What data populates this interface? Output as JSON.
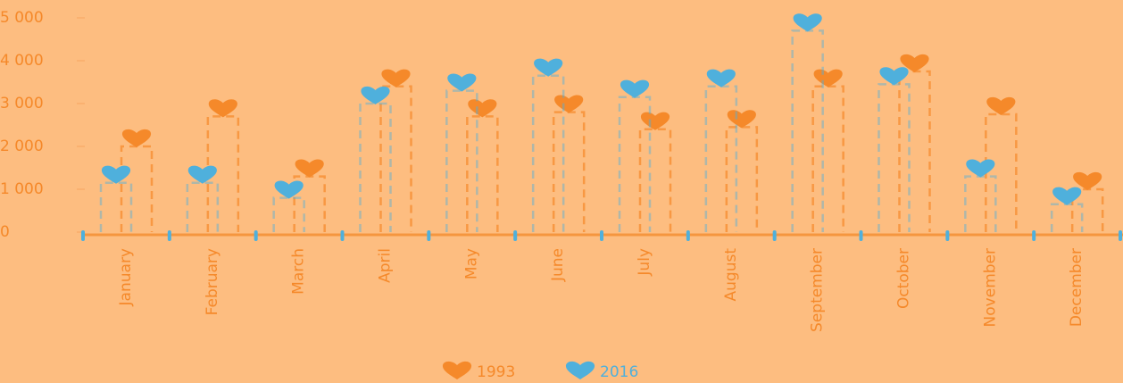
{
  "chart_data": {
    "type": "bar",
    "categories": [
      "January",
      "February",
      "March",
      "April",
      "May",
      "June",
      "July",
      "August",
      "September",
      "October",
      "November",
      "December"
    ],
    "series": [
      {
        "name": "1993",
        "color": "#f5892a",
        "values": [
          2000,
          2700,
          1300,
          3400,
          2700,
          2800,
          2400,
          2450,
          3400,
          3750,
          2750,
          1000
        ]
      },
      {
        "name": "2016",
        "color": "#4fb0dc",
        "values": [
          1150,
          1150,
          800,
          3000,
          3300,
          3650,
          3150,
          3400,
          4700,
          3450,
          1300,
          650
        ]
      }
    ],
    "ylim": [
      0,
      5000
    ],
    "yticks": [
      0,
      {
        "value": 1000,
        "label": "1 000"
      },
      {
        "value": 2000,
        "label": "2 000"
      },
      {
        "value": 3000,
        "label": "3 000"
      },
      {
        "value": 4000,
        "label": "4 000"
      },
      {
        "value": 5000,
        "label": "5 000"
      }
    ]
  }
}
